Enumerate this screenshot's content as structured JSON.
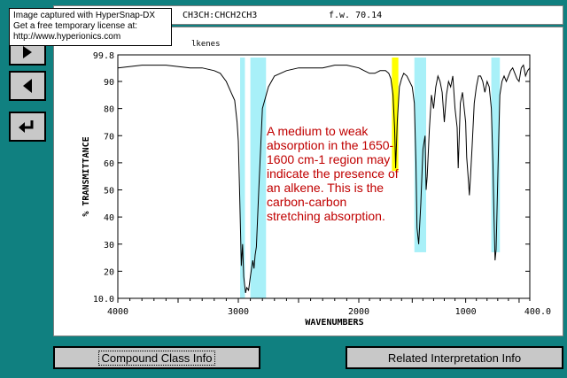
{
  "tooltip": {
    "line1": "Image captured with HyperSnap-DX",
    "line2": "Get a free temporary license at:",
    "line3": "http://www.hyperionics.com"
  },
  "header": {
    "formula": "CH3CH:CHCH2CH3",
    "fw": "f.w. 70.14"
  },
  "panel": {
    "class_label": "lkenes"
  },
  "nav": {
    "forward_icon": "triangle-right-icon",
    "back_icon": "triangle-left-icon",
    "return_icon": "return-arrow-icon"
  },
  "annotation": {
    "text": "A medium to weak absorption in the 1650-1600 cm-1 region may indicate the presence of an alkene. This is the carbon-carbon stretching absorption."
  },
  "buttons": {
    "compound_class": "Compound Class Info",
    "related_interp": "Related Interpretation Info"
  },
  "colors": {
    "background": "#108080",
    "highlight_cyan": "#a8f0f8",
    "highlight_yellow": "#ffff00",
    "annotation_text": "#c00000"
  },
  "chart_data": {
    "type": "line",
    "xlabel": "WAVENUMBERS",
    "ylabel": "% TRANSMITTANCE",
    "xlim": [
      4000,
      400
    ],
    "ylim": [
      10.0,
      99.8
    ],
    "x_ticks": [
      "4000",
      "3000",
      "2000",
      "1000",
      "400.0"
    ],
    "y_ticks": [
      "99.8",
      "90",
      "80",
      "70",
      "60",
      "50",
      "40",
      "30",
      "20",
      "10.0"
    ],
    "highlight_bands": [
      {
        "x": [
          2985,
          2945
        ],
        "color": "#a8f0f8"
      },
      {
        "x": [
          2900,
          2770
        ],
        "color": "#a8f0f8"
      },
      {
        "x": [
          1690,
          1630
        ],
        "color": "#ffff00"
      },
      {
        "x": [
          1480,
          1370
        ],
        "color": "#a8f0f8"
      },
      {
        "x": [
          760,
          680
        ],
        "color": "#a8f0f8"
      }
    ],
    "spectrum": {
      "x": [
        4000,
        3800,
        3600,
        3400,
        3300,
        3200,
        3150,
        3100,
        3060,
        3030,
        3010,
        3000,
        2990,
        2975,
        2965,
        2955,
        2940,
        2930,
        2915,
        2900,
        2880,
        2870,
        2860,
        2850,
        2830,
        2800,
        2750,
        2700,
        2600,
        2500,
        2400,
        2300,
        2200,
        2100,
        2000,
        1950,
        1900,
        1850,
        1800,
        1750,
        1720,
        1700,
        1680,
        1665,
        1655,
        1640,
        1620,
        1600,
        1580,
        1550,
        1500,
        1480,
        1465,
        1455,
        1440,
        1420,
        1400,
        1380,
        1370,
        1360,
        1340,
        1320,
        1300,
        1280,
        1260,
        1240,
        1220,
        1200,
        1180,
        1160,
        1140,
        1120,
        1100,
        1080,
        1070,
        1060,
        1050,
        1030,
        1000,
        990,
        975,
        965,
        955,
        940,
        920,
        900,
        880,
        860,
        840,
        820,
        800,
        780,
        760,
        745,
        735,
        725,
        715,
        705,
        690,
        680,
        660,
        640,
        620,
        600,
        580,
        560,
        540,
        520,
        500,
        480,
        460,
        440,
        420,
        400
      ],
      "y": [
        95,
        96,
        96,
        95,
        95,
        94,
        93,
        90,
        86,
        83,
        75,
        68,
        50,
        22,
        30,
        18,
        12,
        14,
        13,
        18,
        24,
        21,
        26,
        29,
        50,
        80,
        88,
        92,
        94,
        95,
        95,
        95,
        96,
        96,
        95,
        94,
        93,
        93,
        94,
        94,
        93,
        91,
        85,
        73,
        58,
        75,
        88,
        91,
        93,
        92,
        88,
        82,
        60,
        36,
        30,
        45,
        65,
        70,
        50,
        55,
        72,
        85,
        80,
        88,
        92,
        90,
        86,
        75,
        85,
        90,
        88,
        92,
        80,
        73,
        58,
        70,
        82,
        86,
        75,
        62,
        54,
        48,
        55,
        66,
        82,
        88,
        92,
        92,
        90,
        86,
        90,
        88,
        80,
        60,
        40,
        24,
        28,
        45,
        70,
        85,
        90,
        92,
        90,
        92,
        94,
        95,
        93,
        91,
        90,
        95,
        96,
        92,
        94,
        95
      ]
    }
  }
}
